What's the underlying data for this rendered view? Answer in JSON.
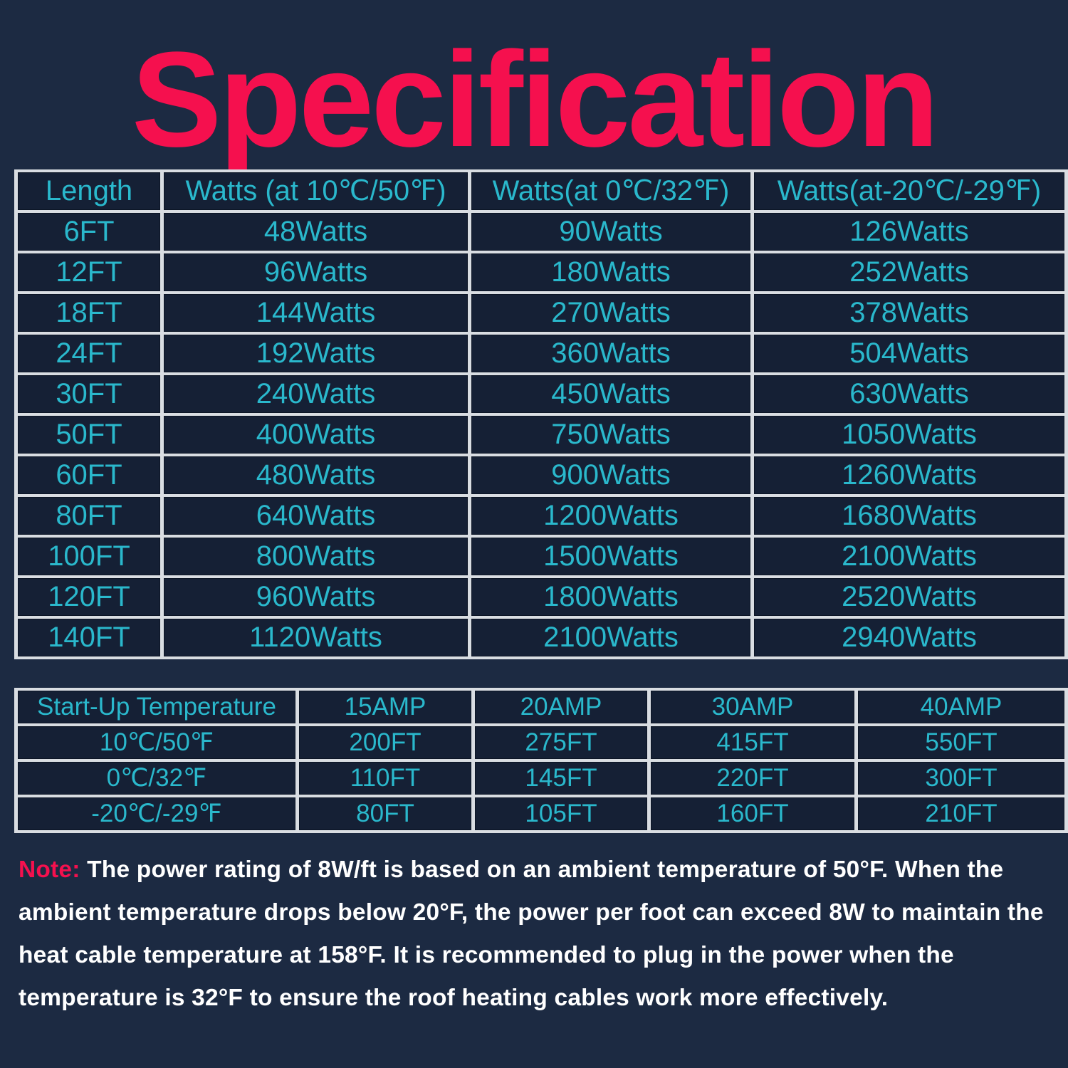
{
  "title": "Specification",
  "watts_table": {
    "headers": [
      "Length",
      "Watts (at 10℃/50℉)",
      "Watts(at 0℃/32℉)",
      "Watts(at-20℃/-29℉)"
    ],
    "rows": [
      [
        "6FT",
        "48Watts",
        "90Watts",
        "126Watts"
      ],
      [
        "12FT",
        "96Watts",
        "180Watts",
        "252Watts"
      ],
      [
        "18FT",
        "144Watts",
        "270Watts",
        "378Watts"
      ],
      [
        "24FT",
        "192Watts",
        "360Watts",
        "504Watts"
      ],
      [
        "30FT",
        "240Watts",
        "450Watts",
        "630Watts"
      ],
      [
        "50FT",
        "400Watts",
        "750Watts",
        "1050Watts"
      ],
      [
        "60FT",
        "480Watts",
        "900Watts",
        "1260Watts"
      ],
      [
        "80FT",
        "640Watts",
        "1200Watts",
        "1680Watts"
      ],
      [
        "100FT",
        "800Watts",
        "1500Watts",
        "2100Watts"
      ],
      [
        "120FT",
        "960Watts",
        "1800Watts",
        "2520Watts"
      ],
      [
        "140FT",
        "1120Watts",
        "2100Watts",
        "2940Watts"
      ]
    ]
  },
  "amp_table": {
    "headers": [
      "Start-Up Temperature",
      "15AMP",
      "20AMP",
      "30AMP",
      "40AMP"
    ],
    "rows": [
      [
        "10℃/50℉",
        "200FT",
        "275FT",
        "415FT",
        "550FT"
      ],
      [
        "0℃/32℉",
        "110FT",
        "145FT",
        "220FT",
        "300FT"
      ],
      [
        "-20℃/-29℉",
        "80FT",
        "105FT",
        "160FT",
        "210FT"
      ]
    ]
  },
  "note": {
    "label": "Note:",
    "text": " The power rating of 8W/ft is based on an ambient temperature of 50°F. When the ambient temperature drops below 20°F, the power per foot can exceed 8W to maintain the heat cable temperature at 158°F. It is recommended to plug in the power when the temperature is 32°F to ensure the roof heating cables work more effectively."
  },
  "colors": {
    "background": "#1c2a42",
    "accent": "#f5104e",
    "cell_text": "#2ab8cc",
    "cell_bg": "#152035",
    "grid": "#d9dde2"
  }
}
